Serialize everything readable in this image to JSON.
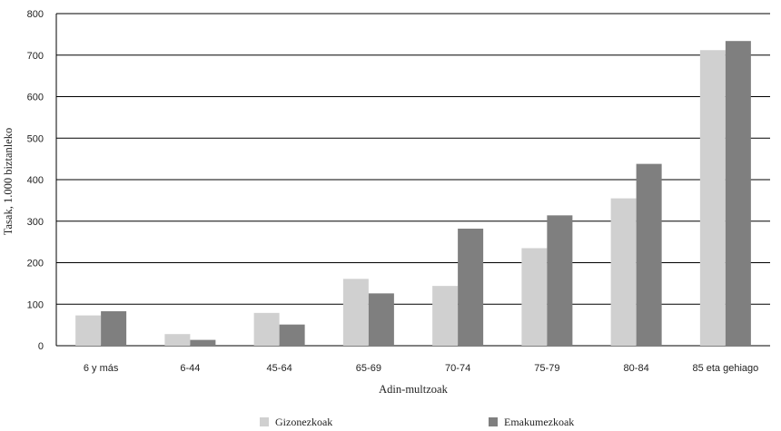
{
  "chart_data": {
    "type": "bar",
    "categories": [
      "6 y más",
      "6-44",
      "45-64",
      "65-69",
      "70-74",
      "75-79",
      "80-84",
      "85 eta gehiago"
    ],
    "series": [
      {
        "name": "Gizonezkoak",
        "values": [
          73,
          28,
          79,
          161,
          144,
          235,
          355,
          712
        ],
        "color": "#d0d0d0"
      },
      {
        "name": "Emakumezkoak",
        "values": [
          83,
          14,
          51,
          126,
          282,
          314,
          438,
          734
        ],
        "color": "#7f7f7f"
      }
    ],
    "xlabel": "Adin-multzoak",
    "ylabel": "Tasak, 1.000 biztanleko",
    "ylim": [
      0,
      800
    ],
    "yticks": [
      0,
      100,
      200,
      300,
      400,
      500,
      600,
      700,
      800
    ],
    "grid": true,
    "legend": "bottom"
  }
}
